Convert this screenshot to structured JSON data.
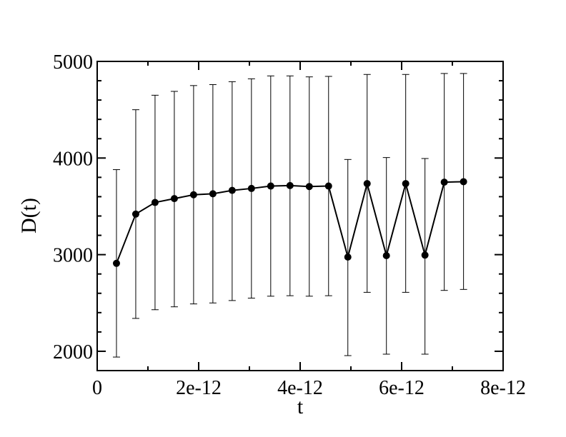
{
  "chart_data": {
    "type": "scatter",
    "xlabel": "t",
    "ylabel": "D(t)",
    "xlim": [
      0,
      8e-12
    ],
    "ylim": [
      1800,
      5000
    ],
    "x_ticks": [
      0,
      2e-12,
      4e-12,
      6e-12,
      8e-12
    ],
    "x_tick_labels": [
      "0",
      "2e-12",
      "4e-12",
      "6e-12",
      "8e-12"
    ],
    "y_ticks": [
      2000,
      3000,
      4000,
      5000
    ],
    "y_tick_labels": [
      "2000",
      "3000",
      "4000",
      "5000"
    ],
    "grid": false,
    "series": [
      {
        "x": [
          3.8e-13,
          7.6e-13,
          1.14e-12,
          1.52e-12,
          1.9e-12,
          2.28e-12,
          2.66e-12,
          3.04e-12,
          3.42e-12,
          3.8e-12,
          4.18e-12,
          4.56e-12,
          4.94e-12,
          5.32e-12,
          5.7e-12,
          6.08e-12,
          6.46e-12,
          6.84e-12,
          7.22e-12
        ],
        "y": [
          2910,
          3420,
          3540,
          3580,
          3620,
          3630,
          3665,
          3685,
          3710,
          3715,
          3705,
          3710,
          2975,
          3735,
          2990,
          3735,
          2995,
          3750,
          3755
        ],
        "err_low": [
          1940,
          2340,
          2430,
          2460,
          2490,
          2500,
          2525,
          2550,
          2570,
          2575,
          2570,
          2575,
          1955,
          2610,
          1970,
          2610,
          1970,
          2630,
          2640
        ],
        "err_high": [
          3880,
          4500,
          4650,
          4690,
          4750,
          4760,
          4790,
          4820,
          4850,
          4850,
          4840,
          4845,
          3985,
          4865,
          4005,
          4865,
          3995,
          4875,
          4875
        ]
      }
    ]
  }
}
